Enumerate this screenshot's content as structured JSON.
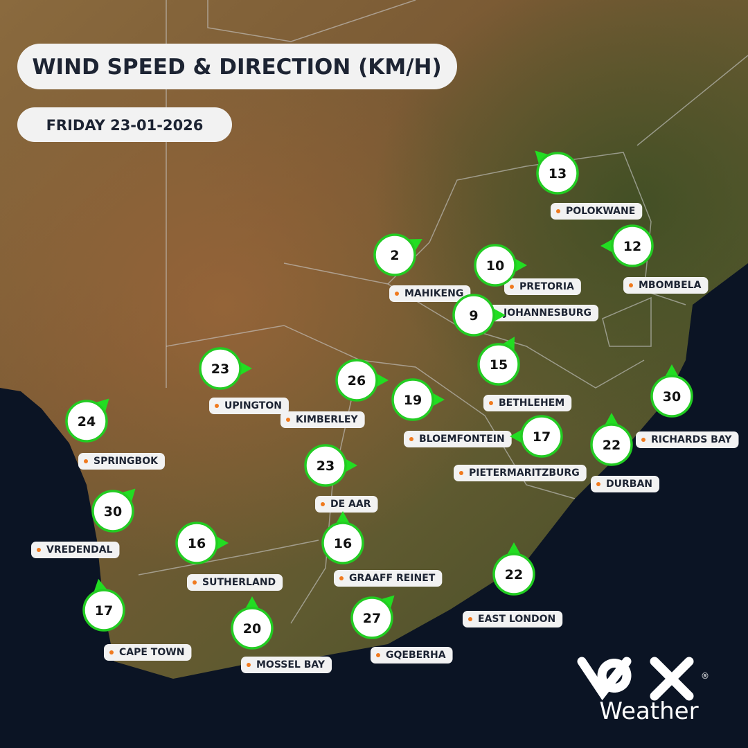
{
  "header": {
    "title": "WIND SPEED & DIRECTION (KM/H)",
    "date": "FRIDAY 23-01-2026"
  },
  "cities": [
    {
      "name": "POLOKWANE",
      "speed": 13,
      "direction": 315
    },
    {
      "name": "MAHIKENG",
      "speed": 2,
      "direction": 60
    },
    {
      "name": "PRETORIA",
      "speed": 10,
      "direction": 90
    },
    {
      "name": "MBOMBELA",
      "speed": 12,
      "direction": 270
    },
    {
      "name": "JOHANNESBURG",
      "speed": 9,
      "direction": 90
    },
    {
      "name": "BETHLEHEM",
      "speed": 15,
      "direction": 30
    },
    {
      "name": "UPINGTON",
      "speed": 23,
      "direction": 90
    },
    {
      "name": "KIMBERLEY",
      "speed": 26,
      "direction": 90
    },
    {
      "name": "BLOEMFONTEIN",
      "speed": 19,
      "direction": 90
    },
    {
      "name": "PIETERMARITZBURG",
      "speed": 17,
      "direction": 270
    },
    {
      "name": "RICHARDS BAY",
      "speed": 30,
      "direction": 0
    },
    {
      "name": "DURBAN",
      "speed": 22,
      "direction": 0
    },
    {
      "name": "SPRINGBOK",
      "speed": 24,
      "direction": 45
    },
    {
      "name": "DE AAR",
      "speed": 23,
      "direction": 90
    },
    {
      "name": "VREDENDAL",
      "speed": 30,
      "direction": 45
    },
    {
      "name": "SUTHERLAND",
      "speed": 16,
      "direction": 90
    },
    {
      "name": "GRAAFF REINET",
      "speed": 16,
      "direction": 0
    },
    {
      "name": "EAST LONDON",
      "speed": 22,
      "direction": 0
    },
    {
      "name": "CAPE TOWN",
      "speed": 17,
      "direction": 350
    },
    {
      "name": "MOSSEL BAY",
      "speed": 20,
      "direction": 0
    },
    {
      "name": "GQEBERHA",
      "speed": 27,
      "direction": 45
    }
  ],
  "logo": {
    "text": "Weather"
  }
}
